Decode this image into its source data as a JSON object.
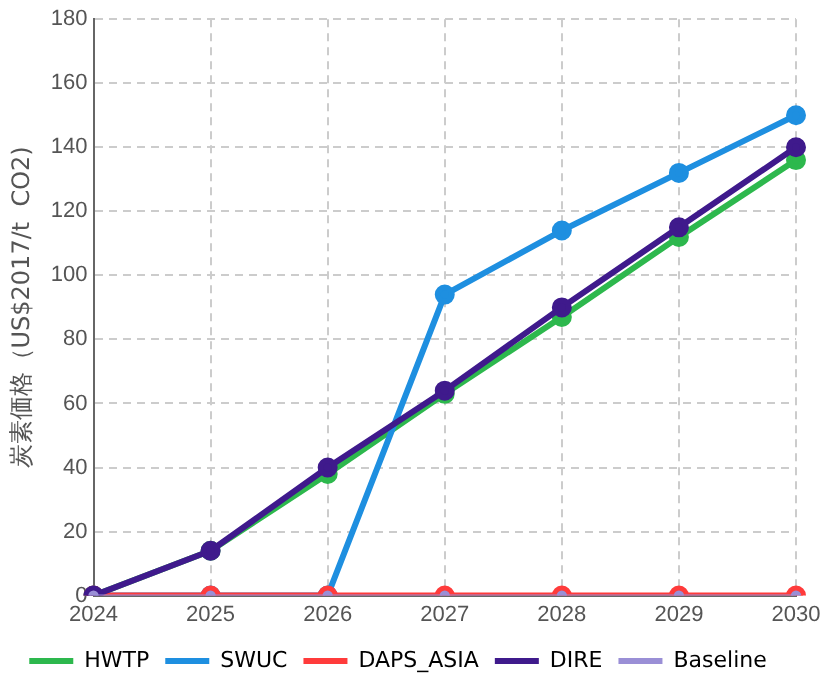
{
  "chart_data": {
    "type": "line",
    "ylabel": "炭素価格（US$2017/t  CO2)",
    "categories": [
      "2024",
      "2025",
      "2026",
      "2027",
      "2028",
      "2029",
      "2030"
    ],
    "series": [
      {
        "name": "HWTP",
        "color": "#2db84d",
        "values": [
          0,
          14,
          38,
          63,
          87,
          112,
          136
        ]
      },
      {
        "name": "SWUC",
        "color": "#1e8fe0",
        "values": [
          0,
          0,
          0,
          94,
          114,
          132,
          150
        ]
      },
      {
        "name": "DAPS_ASIA",
        "color": "#ff3b3b",
        "values": [
          0,
          0,
          0,
          0,
          0,
          0,
          0
        ]
      },
      {
        "name": "DIRE",
        "color": "#3f1a8c",
        "values": [
          0,
          14,
          40,
          64,
          90,
          115,
          140
        ]
      },
      {
        "name": "Baseline",
        "color": "#9a8fd6",
        "values": [
          0,
          0,
          0,
          0,
          0,
          0,
          0
        ]
      }
    ],
    "ylim": [
      0,
      180
    ],
    "yticks": [
      0,
      20,
      40,
      60,
      80,
      100,
      120,
      140,
      160,
      180
    ],
    "grid": true,
    "legend": "bottom",
    "marker": "circle",
    "line_style": "solid"
  }
}
